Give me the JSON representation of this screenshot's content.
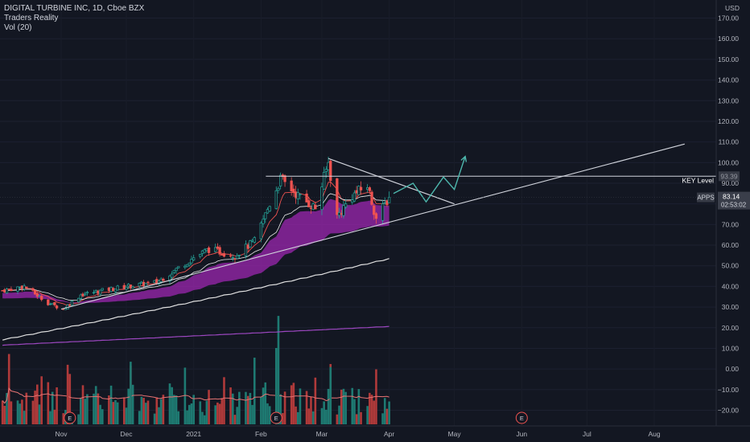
{
  "header": {
    "title": "DIGITAL TURBINE INC, 1D, Cboe BZX",
    "indicator": "Traders Reality",
    "volume": "Vol (20)"
  },
  "price_axis": {
    "currency": "USD",
    "ticks": [
      "170.00",
      "160.00",
      "150.00",
      "140.00",
      "130.00",
      "120.00",
      "110.00",
      "100.00",
      "90.00",
      "80.00",
      "70.00",
      "60.00",
      "50.00",
      "40.00",
      "30.00",
      "20.00",
      "10.00",
      "0.00",
      "−10.00",
      "−20.00"
    ]
  },
  "labels": {
    "key_level": "KEY Level",
    "key_value": "93.39",
    "ticker": "APPS",
    "last_price": "83.14",
    "countdown": "02:53:02",
    "earnings": "E"
  },
  "colors": {
    "background": "#131722",
    "up": "#26a69a",
    "down": "#ef5350",
    "up_volume": "#1e7a72",
    "down_volume": "#b03a3a",
    "cloud": "#9c27b0",
    "ema_white": "#e0e0e0",
    "ema_purple": "#9c47c0",
    "projection": "#4db6ac"
  },
  "chart_data": {
    "type": "candlestick",
    "title": "DIGITAL TURBINE INC, 1D, Cboe BZX",
    "ylabel": "USD",
    "ylim": [
      -25,
      175
    ],
    "x_ticks": [
      "Nov",
      "Dec",
      "2021",
      "Feb",
      "Mar",
      "Apr",
      "May",
      "Jun",
      "Jul",
      "Aug"
    ],
    "x_tick_dates": [
      "2020-11-01",
      "2020-12-01",
      "2021-01-01",
      "2021-02-01",
      "2021-03-01",
      "2021-04-01",
      "2021-05-01",
      "2021-06-01",
      "2021-07-01",
      "2021-08-01"
    ],
    "date_range": [
      "2020-10-05",
      "2021-04-01"
    ],
    "price_path": [
      {
        "date": "2020-10-05",
        "close": 38
      },
      {
        "date": "2020-10-15",
        "close": 40
      },
      {
        "date": "2020-10-26",
        "close": 32
      },
      {
        "date": "2020-11-02",
        "close": 29
      },
      {
        "date": "2020-11-10",
        "close": 36
      },
      {
        "date": "2020-11-20",
        "close": 38
      },
      {
        "date": "2020-12-01",
        "close": 40
      },
      {
        "date": "2020-12-15",
        "close": 42
      },
      {
        "date": "2021-01-01",
        "close": 54
      },
      {
        "date": "2021-01-08",
        "close": 58
      },
      {
        "date": "2021-01-20",
        "close": 55
      },
      {
        "date": "2021-01-29",
        "close": 62
      },
      {
        "date": "2021-02-05",
        "close": 80
      },
      {
        "date": "2021-02-10",
        "close": 92
      },
      {
        "date": "2021-02-18",
        "close": 84
      },
      {
        "date": "2021-02-26",
        "close": 78
      },
      {
        "date": "2021-03-04",
        "close": 100
      },
      {
        "date": "2021-03-08",
        "close": 74
      },
      {
        "date": "2021-03-15",
        "close": 84
      },
      {
        "date": "2021-03-22",
        "close": 89
      },
      {
        "date": "2021-03-26",
        "close": 73
      },
      {
        "date": "2021-04-01",
        "close": 83.14
      }
    ],
    "series": [
      {
        "name": "Vol (20)",
        "type": "volume"
      }
    ],
    "annotations": [
      {
        "type": "hline",
        "value": 93.39,
        "label": "KEY Level",
        "from": "2021-02-01"
      },
      {
        "type": "trendline",
        "from": {
          "date": "2020-11-01",
          "value": 29
        },
        "to": {
          "date": "2021-08-15",
          "value": 109
        }
      },
      {
        "type": "trendline",
        "from": {
          "date": "2021-03-04",
          "value": 102
        },
        "to": {
          "date": "2021-05-01",
          "value": 80
        }
      },
      {
        "type": "projection",
        "points": [
          {
            "date": "2021-04-03",
            "value": 85
          },
          {
            "date": "2021-04-12",
            "value": 90
          },
          {
            "date": "2021-04-18",
            "value": 81
          },
          {
            "date": "2021-04-26",
            "value": 93
          },
          {
            "date": "2021-05-01",
            "value": 87
          },
          {
            "date": "2021-05-06",
            "value": 103
          }
        ]
      }
    ],
    "earnings": [
      "2020-11-05",
      "2021-02-08",
      "2021-06-01"
    ],
    "last_price": 83.14
  }
}
